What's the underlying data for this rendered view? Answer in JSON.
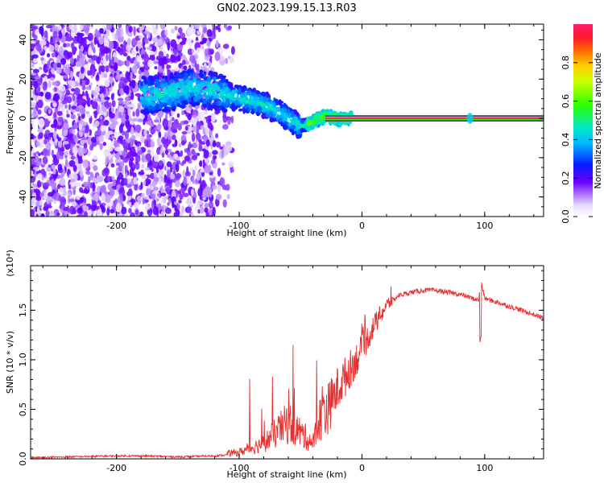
{
  "title": "GN02.2023.199.15.13.R03",
  "chart_data": [
    {
      "type": "heatmap",
      "xlabel": "Height of straight line (km)",
      "ylabel": "Frequency (Hz)",
      "xlim": [
        -270,
        148
      ],
      "ylim": [
        -50,
        48
      ],
      "xticks": [
        -200,
        -100,
        0,
        100
      ],
      "yticks": [
        -40,
        -20,
        0,
        20,
        40
      ],
      "colorbar": {
        "label": "Normalized spectral amplitude",
        "ticks": [
          "0.0",
          "0.2",
          "0.4",
          "0.6",
          "0.8"
        ],
        "range": [
          0,
          1
        ]
      },
      "ridge": {
        "x": [
          -165,
          -150,
          -140,
          -130,
          -120,
          -110,
          -100,
          -90,
          -80,
          -70,
          -60,
          -50,
          -45,
          -40,
          -35,
          -30,
          -25,
          -20,
          -15,
          -10,
          -5,
          0,
          20,
          60,
          88,
          100,
          148
        ],
        "y": [
          12,
          14,
          16,
          15,
          14,
          12,
          10,
          9,
          7,
          4,
          0,
          -4,
          -3,
          -2,
          0,
          1,
          0.5,
          0,
          -0.5,
          0,
          0.2,
          0,
          0,
          0,
          0,
          0,
          0
        ]
      },
      "carrier": {
        "x": [
          -30,
          148
        ],
        "y": 0
      },
      "grid": false
    },
    {
      "type": "line",
      "xlabel": "Height of straight line (km)",
      "ylabel": "SNR (10 * v/v)",
      "multiplier": "(x10⁴)",
      "xlim": [
        -270,
        148
      ],
      "ylim": [
        0,
        1.95
      ],
      "xticks": [
        -200,
        -100,
        0,
        100
      ],
      "yticks": [
        "0.0",
        "0.5",
        "1.0",
        "1.5"
      ],
      "series": [
        {
          "color": "#e53030",
          "x": [
            -270,
            -240,
            -200,
            -180,
            -150,
            -120,
            -100,
            -80,
            -70,
            -60,
            -50,
            -40,
            -30,
            -20,
            -10,
            0,
            10,
            20,
            30,
            40,
            50,
            60,
            70,
            80,
            90,
            95,
            97,
            100,
            110,
            120,
            130,
            148
          ],
          "y": [
            0.01,
            0.02,
            0.03,
            0.03,
            0.02,
            0.03,
            0.05,
            0.12,
            0.2,
            0.28,
            0.2,
            0.12,
            0.45,
            0.7,
            0.9,
            1.1,
            1.35,
            1.55,
            1.65,
            1.68,
            1.7,
            1.7,
            1.68,
            1.66,
            1.62,
            1.6,
            1.8,
            1.62,
            1.58,
            1.54,
            1.5,
            1.42
          ]
        }
      ],
      "grid": false
    }
  ]
}
